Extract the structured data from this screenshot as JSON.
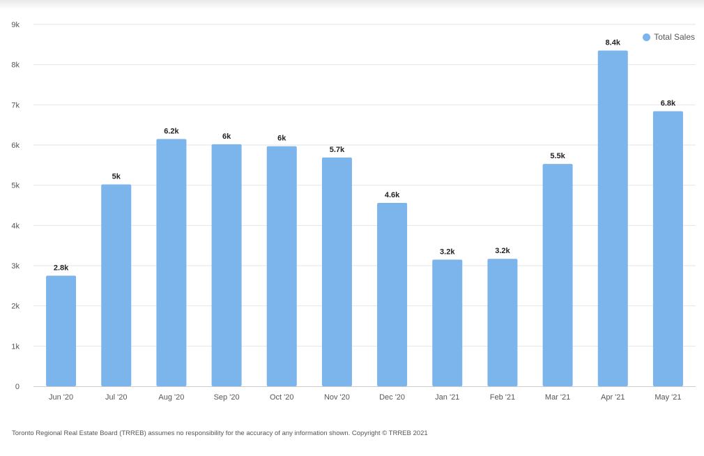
{
  "chart_data": {
    "type": "bar",
    "categories": [
      "Jun '20",
      "Jul '20",
      "Aug '20",
      "Sep '20",
      "Oct '20",
      "Nov '20",
      "Dec '20",
      "Jan '21",
      "Feb '21",
      "Mar '21",
      "Apr '21",
      "May '21"
    ],
    "series": [
      {
        "name": "Total Sales",
        "values": [
          2750,
          5020,
          6150,
          6020,
          5970,
          5690,
          4560,
          3150,
          3170,
          5530,
          8350,
          6840
        ],
        "data_labels": [
          "2.8k",
          "5k",
          "6.2k",
          "6k",
          "6k",
          "5.7k",
          "4.6k",
          "3.2k",
          "3.2k",
          "5.5k",
          "8.4k",
          "6.8k"
        ],
        "color": "#7cb4ec"
      }
    ],
    "ylim": [
      0,
      9000
    ],
    "yticks": [
      0,
      1000,
      2000,
      3000,
      4000,
      5000,
      6000,
      7000,
      8000,
      9000
    ],
    "ytick_labels": [
      "0",
      "1k",
      "2k",
      "3k",
      "4k",
      "5k",
      "6k",
      "7k",
      "8k",
      "9k"
    ],
    "grid": true,
    "legend_position": "top-right",
    "title": "",
    "xlabel": "",
    "ylabel": ""
  },
  "legend": {
    "label": "Total Sales",
    "color": "#7cb4ec"
  },
  "footer": {
    "text": "Toronto Regional Real Estate Board (TRREB) assumes no responsibility for the accuracy of any information shown. Copyright © TRREB 2021"
  }
}
